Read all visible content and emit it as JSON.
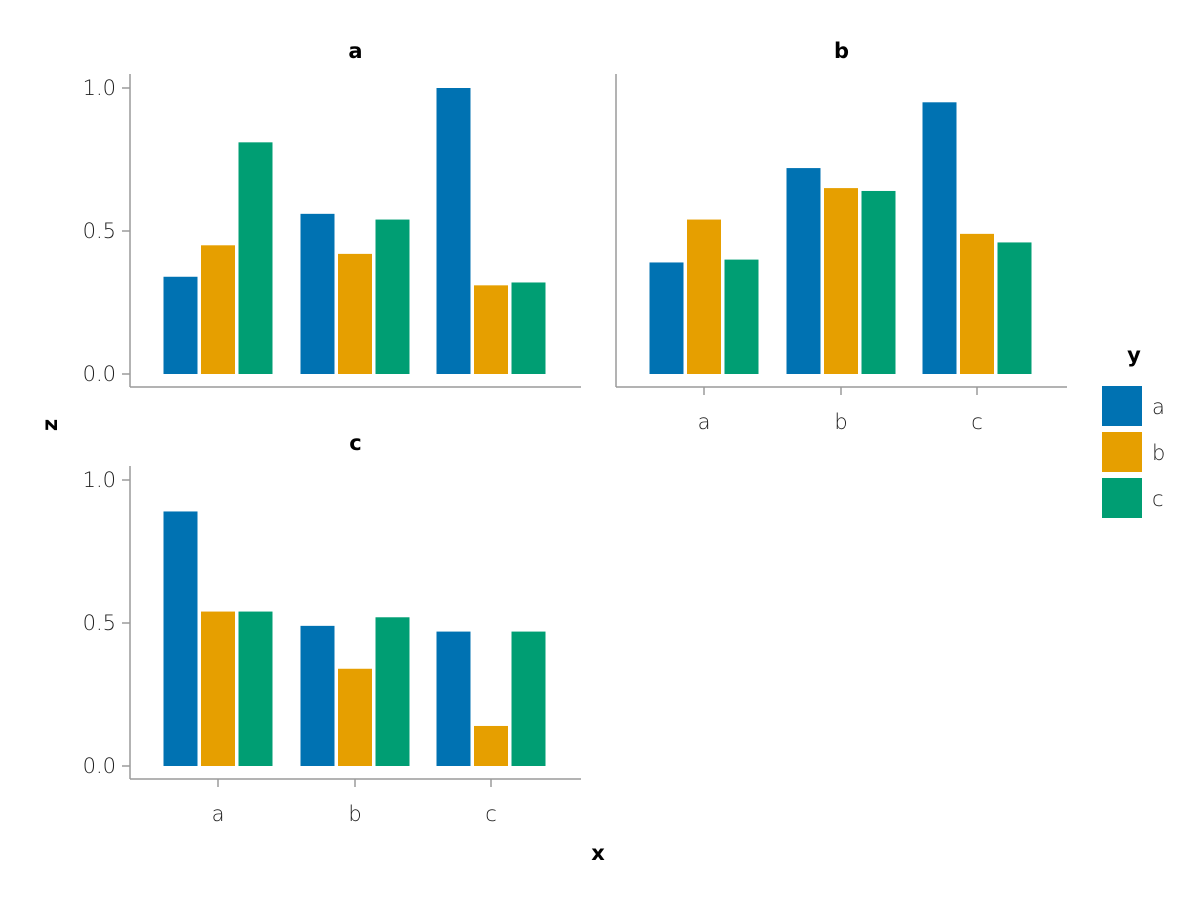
{
  "chart_data": {
    "type": "bar",
    "layout": "faceted grouped bar chart (facet by panel, dodge by y)",
    "xlabel": "x",
    "ylabel": "z",
    "ylim": [
      0,
      1
    ],
    "yticks": [
      0.0,
      0.5,
      1.0
    ],
    "ytick_labels": [
      "0.0",
      "0.5",
      "1.0"
    ],
    "categories": [
      "a",
      "b",
      "c"
    ],
    "grid": false,
    "legend": {
      "title": "y",
      "placement": "right",
      "entries": [
        {
          "label": "a",
          "color": "#0072B2"
        },
        {
          "label": "b",
          "color": "#E69F00"
        },
        {
          "label": "c",
          "color": "#009E73"
        }
      ]
    },
    "panels": [
      {
        "title": "a",
        "series": [
          {
            "name": "a",
            "values": [
              0.34,
              0.56,
              1.0
            ]
          },
          {
            "name": "b",
            "values": [
              0.45,
              0.42,
              0.31
            ]
          },
          {
            "name": "c",
            "values": [
              0.81,
              0.54,
              0.32
            ]
          }
        ]
      },
      {
        "title": "b",
        "series": [
          {
            "name": "a",
            "values": [
              0.39,
              0.72,
              0.95
            ]
          },
          {
            "name": "b",
            "values": [
              0.54,
              0.65,
              0.49
            ]
          },
          {
            "name": "c",
            "values": [
              0.4,
              0.64,
              0.46
            ]
          }
        ]
      },
      {
        "title": "c",
        "series": [
          {
            "name": "a",
            "values": [
              0.89,
              0.49,
              0.47
            ]
          },
          {
            "name": "b",
            "values": [
              0.54,
              0.34,
              0.14
            ]
          },
          {
            "name": "c",
            "values": [
              0.54,
              0.52,
              0.47
            ]
          }
        ]
      }
    ]
  }
}
